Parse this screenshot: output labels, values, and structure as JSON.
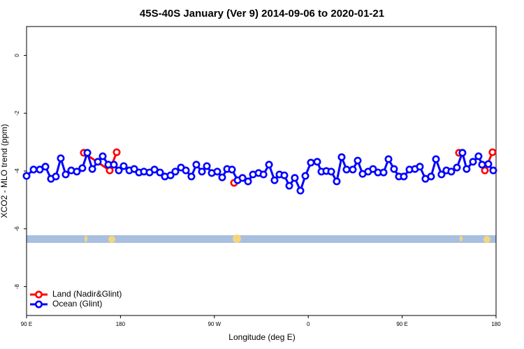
{
  "chart_data": {
    "type": "line",
    "title": "45S-40S January (Ver 9)   2014-09-06 to 2020-01-21",
    "x_label": "Longitude (deg E)",
    "y_label": "XCO2 - MLO trend (ppm)",
    "xlim": [
      90,
      540
    ],
    "ylim": [
      -9,
      1
    ],
    "xticks": [
      {
        "value": 90,
        "label": "90 E"
      },
      180,
      {
        "value": 270,
        "label": "90 W"
      },
      {
        "value": 360,
        "label": "0"
      },
      {
        "value": 450,
        "label": "90 E"
      },
      {
        "value": 540,
        "label": "180"
      }
    ],
    "yticks": [
      0,
      -2,
      -4,
      -6,
      -8
    ],
    "legend": "bottom-left",
    "series": [
      {
        "name": "Land (Nadir&Glint)",
        "color": "#ff0000",
        "x": [
          144.9,
          169.7,
          176.4,
          288.9,
          504.5,
          529.3,
          536.6
        ],
        "values": [
          -3.37,
          -3.98,
          -3.35,
          -4.41,
          -3.37,
          -3.98,
          -3.35
        ]
      },
      {
        "name": "Ocean (Glint)",
        "color": "#0000ff",
        "x": [
          90,
          96.7,
          102.7,
          108.1,
          113.4,
          118.1,
          122.8,
          127.5,
          132.8,
          138.2,
          143.5,
          148.3,
          153,
          158.3,
          163,
          168.4,
          173.7,
          178.4,
          183.1,
          188.5,
          193.2,
          197.8,
          202.5,
          207.9,
          212.6,
          217.9,
          222.6,
          228,
          232.6,
          238,
          242.7,
          248,
          252.7,
          258.1,
          262.8,
          267.5,
          272.8,
          277.5,
          282.2,
          286.9,
          292.3,
          297,
          302.3,
          307,
          312.4,
          317.1,
          322.4,
          327.7,
          332.4,
          337.1,
          341.8,
          347.1,
          352.5,
          357.2,
          362.5,
          368.6,
          372.6,
          377.3,
          382,
          387.3,
          392,
          396.7,
          402.7,
          407.4,
          412.1,
          417.4,
          422.1,
          426.8,
          432.2,
          436.9,
          442.2,
          446.9,
          451.6,
          457,
          462.3,
          467,
          472.3,
          477.7,
          482.4,
          487.7,
          492.4,
          497.1,
          502.5,
          507.8,
          511.8,
          517.9,
          523.2,
          526.6,
          532.6,
          537.3
        ],
        "values": [
          -4.17,
          -3.95,
          -3.95,
          -3.85,
          -4.27,
          -4.19,
          -3.56,
          -4.12,
          -3.98,
          -4.02,
          -3.9,
          -3.37,
          -3.93,
          -3.68,
          -3.49,
          -3.78,
          -3.78,
          -3.98,
          -3.83,
          -3.98,
          -3.93,
          -4.05,
          -4.02,
          -4.05,
          -3.95,
          -4.05,
          -4.19,
          -4.15,
          -4.02,
          -3.88,
          -3.98,
          -4.19,
          -3.78,
          -4.02,
          -3.83,
          -4.07,
          -4.02,
          -4.22,
          -3.93,
          -3.95,
          -4.32,
          -4.24,
          -4.36,
          -4.12,
          -4.07,
          -4.12,
          -3.78,
          -4.32,
          -4.12,
          -4.15,
          -4.51,
          -4.24,
          -4.68,
          -4.17,
          -3.71,
          -3.68,
          -4.02,
          -4.0,
          -4.02,
          -4.36,
          -3.52,
          -3.95,
          -3.95,
          -3.64,
          -4.1,
          -4.02,
          -3.93,
          -4.05,
          -4.05,
          -3.59,
          -3.93,
          -4.19,
          -4.19,
          -3.95,
          -3.93,
          -3.85,
          -4.27,
          -4.19,
          -3.59,
          -4.12,
          -3.98,
          -4.02,
          -3.88,
          -3.37,
          -3.93,
          -3.68,
          -3.49,
          -3.78,
          -3.76,
          -3.98
        ]
      }
    ]
  }
}
